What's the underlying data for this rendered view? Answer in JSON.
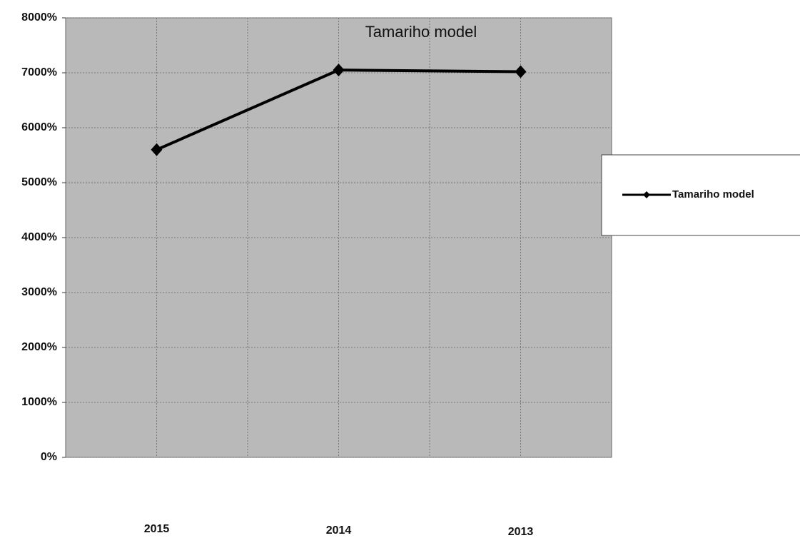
{
  "chart_data": {
    "type": "line",
    "title": "Tamariho model",
    "categories": [
      "2015",
      "2014",
      "2013"
    ],
    "series": [
      {
        "name": "Tamariho model",
        "color": "#000000",
        "values": [
          5600,
          7050,
          7020
        ]
      }
    ],
    "ylim": [
      0,
      8000
    ],
    "yticks": [
      {
        "value": 0,
        "label": "0%"
      },
      {
        "value": 1000,
        "label": "1000%"
      },
      {
        "value": 2000,
        "label": "2000%"
      },
      {
        "value": 3000,
        "label": "3000%"
      },
      {
        "value": 4000,
        "label": "4000%"
      },
      {
        "value": 5000,
        "label": "5000%"
      },
      {
        "value": 6000,
        "label": "6000%"
      },
      {
        "value": 7000,
        "label": "7000%"
      },
      {
        "value": 8000,
        "label": "8000%"
      }
    ],
    "grid": true,
    "legend": "right"
  }
}
